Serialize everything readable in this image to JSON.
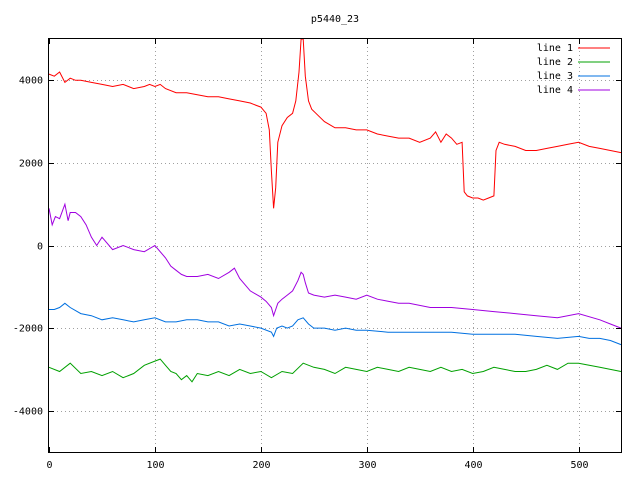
{
  "chart_data": {
    "type": "line",
    "title": "p5440_23",
    "xlabel": "",
    "ylabel": "",
    "xlim": [
      0,
      540
    ],
    "ylim": [
      -5000,
      5000
    ],
    "xticks": [
      0,
      100,
      200,
      300,
      400,
      500
    ],
    "yticks": [
      -4000,
      -2000,
      0,
      2000,
      4000
    ],
    "grid": true,
    "legend_position": "top-right",
    "series": [
      {
        "name": "line 1",
        "color": "#ff0000",
        "x": [
          0,
          5,
          10,
          15,
          20,
          25,
          30,
          40,
          50,
          60,
          70,
          80,
          90,
          95,
          100,
          105,
          110,
          120,
          130,
          140,
          150,
          160,
          170,
          180,
          190,
          195,
          200,
          205,
          208,
          210,
          212,
          214,
          216,
          220,
          225,
          230,
          233,
          236,
          238,
          240,
          242,
          245,
          248,
          252,
          260,
          270,
          280,
          290,
          300,
          310,
          320,
          330,
          340,
          350,
          360,
          365,
          370,
          375,
          380,
          385,
          390,
          392,
          395,
          400,
          405,
          410,
          415,
          420,
          422,
          425,
          430,
          440,
          450,
          460,
          470,
          480,
          490,
          500,
          510,
          520,
          530,
          540
        ],
        "y": [
          4150,
          4100,
          4200,
          3950,
          4050,
          4000,
          4000,
          3950,
          3900,
          3850,
          3900,
          3800,
          3850,
          3900,
          3850,
          3900,
          3800,
          3700,
          3700,
          3650,
          3600,
          3600,
          3550,
          3500,
          3450,
          3400,
          3350,
          3200,
          2800,
          1800,
          900,
          1400,
          2500,
          2900,
          3100,
          3200,
          3500,
          4200,
          5000,
          5000,
          4100,
          3500,
          3300,
          3200,
          3000,
          2850,
          2850,
          2800,
          2800,
          2700,
          2650,
          2600,
          2600,
          2500,
          2600,
          2750,
          2500,
          2700,
          2600,
          2450,
          2500,
          1300,
          1200,
          1150,
          1150,
          1100,
          1150,
          1200,
          2300,
          2500,
          2450,
          2400,
          2300,
          2300,
          2350,
          2400,
          2450,
          2500,
          2400,
          2350,
          2300,
          2250
        ]
      },
      {
        "name": "line 2",
        "color": "#00a000",
        "x": [
          0,
          10,
          20,
          30,
          40,
          50,
          60,
          70,
          80,
          90,
          100,
          105,
          110,
          115,
          120,
          125,
          130,
          135,
          140,
          150,
          160,
          170,
          180,
          190,
          200,
          210,
          220,
          230,
          240,
          250,
          260,
          270,
          280,
          290,
          300,
          310,
          320,
          330,
          340,
          350,
          360,
          370,
          380,
          390,
          400,
          410,
          420,
          430,
          440,
          450,
          460,
          470,
          480,
          490,
          500,
          510,
          520,
          530,
          540
        ],
        "y": [
          -2950,
          -3050,
          -2850,
          -3100,
          -3050,
          -3150,
          -3050,
          -3200,
          -3100,
          -2900,
          -2800,
          -2750,
          -2900,
          -3050,
          -3100,
          -3250,
          -3150,
          -3300,
          -3100,
          -3150,
          -3050,
          -3150,
          -3000,
          -3100,
          -3050,
          -3200,
          -3050,
          -3100,
          -2850,
          -2950,
          -3000,
          -3100,
          -2950,
          -3000,
          -3050,
          -2950,
          -3000,
          -3050,
          -2950,
          -3000,
          -3050,
          -2950,
          -3050,
          -3000,
          -3100,
          -3050,
          -2950,
          -3000,
          -3050,
          -3050,
          -3000,
          -2900,
          -3000,
          -2850,
          -2850,
          -2900,
          -2950,
          -3000,
          -3050
        ]
      },
      {
        "name": "line 3",
        "color": "#0070e0",
        "x": [
          0,
          5,
          10,
          15,
          20,
          30,
          40,
          50,
          60,
          70,
          80,
          90,
          100,
          110,
          120,
          130,
          140,
          150,
          160,
          170,
          180,
          190,
          200,
          210,
          212,
          215,
          220,
          225,
          230,
          235,
          240,
          245,
          250,
          260,
          270,
          280,
          290,
          300,
          320,
          340,
          360,
          380,
          400,
          420,
          440,
          460,
          480,
          500,
          510,
          520,
          530,
          540
        ],
        "y": [
          -1550,
          -1550,
          -1500,
          -1400,
          -1500,
          -1650,
          -1700,
          -1800,
          -1750,
          -1800,
          -1850,
          -1800,
          -1750,
          -1850,
          -1850,
          -1800,
          -1800,
          -1850,
          -1850,
          -1950,
          -1900,
          -1950,
          -2000,
          -2100,
          -2200,
          -2000,
          -1950,
          -2000,
          -1950,
          -1800,
          -1750,
          -1900,
          -2000,
          -2000,
          -2050,
          -2000,
          -2050,
          -2050,
          -2100,
          -2100,
          -2100,
          -2100,
          -2150,
          -2150,
          -2150,
          -2200,
          -2250,
          -2200,
          -2250,
          -2250,
          -2300,
          -2400
        ]
      },
      {
        "name": "line 4",
        "color": "#a000e0",
        "x": [
          0,
          3,
          6,
          10,
          15,
          18,
          20,
          25,
          30,
          35,
          40,
          45,
          50,
          60,
          70,
          80,
          90,
          100,
          110,
          115,
          120,
          125,
          130,
          140,
          150,
          160,
          170,
          175,
          180,
          190,
          200,
          205,
          210,
          212,
          214,
          216,
          220,
          225,
          230,
          235,
          238,
          240,
          242,
          245,
          250,
          260,
          270,
          280,
          290,
          300,
          310,
          320,
          330,
          340,
          360,
          380,
          400,
          420,
          440,
          460,
          480,
          500,
          520,
          530,
          540
        ],
        "y": [
          900,
          500,
          700,
          650,
          1000,
          600,
          800,
          800,
          700,
          500,
          200,
          0,
          200,
          -100,
          0,
          -100,
          -150,
          0,
          -300,
          -500,
          -600,
          -700,
          -750,
          -750,
          -700,
          -800,
          -650,
          -550,
          -800,
          -1100,
          -1250,
          -1350,
          -1500,
          -1700,
          -1550,
          -1400,
          -1300,
          -1200,
          -1100,
          -850,
          -650,
          -700,
          -900,
          -1150,
          -1200,
          -1250,
          -1200,
          -1250,
          -1300,
          -1200,
          -1300,
          -1350,
          -1400,
          -1400,
          -1500,
          -1500,
          -1550,
          -1600,
          -1650,
          -1700,
          -1750,
          -1650,
          -1800,
          -1900,
          -2000
        ]
      }
    ]
  }
}
